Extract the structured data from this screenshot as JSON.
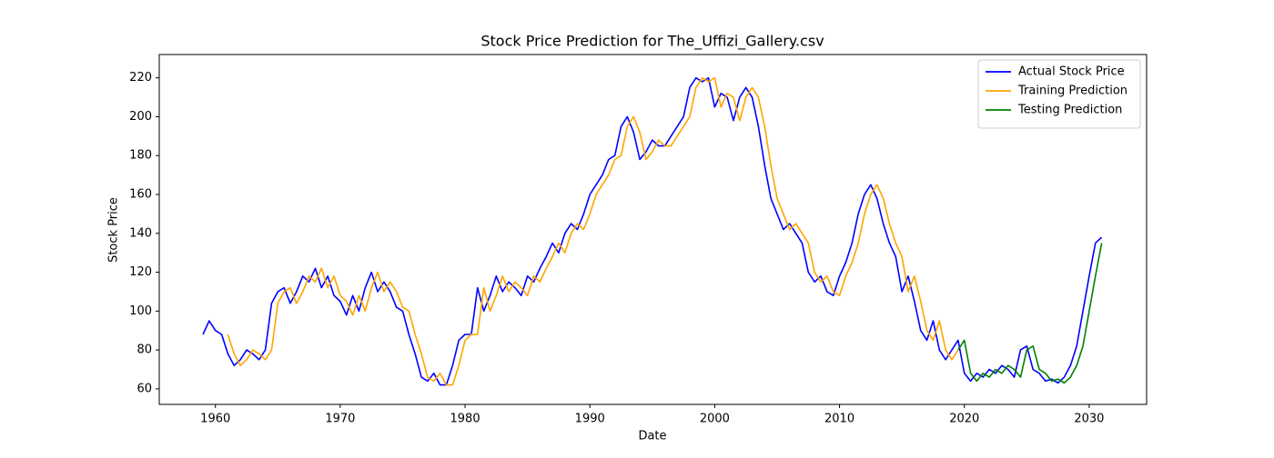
{
  "chart_data": {
    "type": "line",
    "title": "Stock Price Prediction for The_Uffizi_Gallery.csv",
    "x_label": "Date",
    "y_label": "Stock Price",
    "xlim": [
      1955.5,
      2034.6
    ],
    "ylim": [
      52,
      232
    ],
    "xticks": [
      1960,
      1970,
      1980,
      1990,
      2000,
      2010,
      2020,
      2030
    ],
    "yticks": [
      60,
      80,
      100,
      120,
      140,
      160,
      180,
      200,
      220
    ],
    "grid": false,
    "legend": "upper right",
    "x": [
      1959,
      1959.5,
      1960,
      1960.5,
      1961,
      1961.5,
      1962,
      1962.5,
      1963,
      1963.5,
      1964,
      1964.5,
      1965,
      1965.5,
      1966,
      1966.5,
      1967,
      1967.5,
      1968,
      1968.5,
      1969,
      1969.5,
      1970,
      1970.5,
      1971,
      1971.5,
      1972,
      1972.5,
      1973,
      1973.5,
      1974,
      1974.5,
      1975,
      1975.5,
      1976,
      1976.5,
      1977,
      1977.5,
      1978,
      1978.5,
      1979,
      1979.5,
      1980,
      1980.5,
      1981,
      1981.5,
      1982,
      1982.5,
      1983,
      1983.5,
      1984,
      1984.5,
      1985,
      1985.5,
      1986,
      1986.5,
      1987,
      1987.5,
      1988,
      1988.5,
      1989,
      1989.5,
      1990,
      1990.5,
      1991,
      1991.5,
      1992,
      1992.5,
      1993,
      1993.5,
      1994,
      1994.5,
      1995,
      1995.5,
      1996,
      1996.5,
      1997,
      1997.5,
      1998,
      1998.5,
      1999,
      1999.5,
      2000,
      2000.5,
      2001,
      2001.5,
      2002,
      2002.5,
      2003,
      2003.5,
      2004,
      2004.5,
      2005,
      2005.5,
      2006,
      2006.5,
      2007,
      2007.5,
      2008,
      2008.5,
      2009,
      2009.5,
      2010,
      2010.5,
      2011,
      2011.5,
      2012,
      2012.5,
      2013,
      2013.5,
      2014,
      2014.5,
      2015,
      2015.5,
      2016,
      2016.5,
      2017,
      2017.5,
      2018,
      2018.5,
      2019,
      2019.5,
      2020,
      2020.5,
      2021,
      2021.5,
      2022,
      2022.5,
      2023,
      2023.5,
      2024,
      2024.5,
      2025,
      2025.5,
      2026,
      2026.5,
      2027,
      2027.5,
      2028,
      2028.5,
      2029,
      2029.5,
      2030,
      2030.5,
      2031
    ],
    "series": [
      {
        "name": "Actual Stock Price",
        "color": "#0000ff",
        "values": [
          88,
          95,
          90,
          88,
          78,
          72,
          75,
          80,
          78,
          75,
          80,
          104,
          110,
          112,
          104,
          110,
          118,
          115,
          122,
          112,
          118,
          108,
          105,
          98,
          108,
          100,
          112,
          120,
          110,
          115,
          110,
          102,
          100,
          88,
          78,
          66,
          64,
          68,
          62,
          62,
          72,
          85,
          88,
          88,
          112,
          100,
          108,
          118,
          110,
          115,
          112,
          108,
          118,
          115,
          122,
          128,
          135,
          130,
          140,
          145,
          142,
          150,
          160,
          165,
          170,
          178,
          180,
          195,
          200,
          192,
          178,
          182,
          188,
          185,
          185,
          190,
          195,
          200,
          215,
          220,
          218,
          220,
          205,
          212,
          210,
          198,
          210,
          215,
          210,
          195,
          175,
          158,
          150,
          142,
          145,
          140,
          135,
          120,
          115,
          118,
          110,
          108,
          118,
          125,
          135,
          150,
          160,
          165,
          158,
          145,
          135,
          128,
          110,
          118,
          105,
          90,
          85,
          95,
          80,
          75,
          80,
          85,
          68,
          64,
          68,
          66,
          70,
          68,
          72,
          70,
          66,
          80,
          82,
          70,
          68,
          64,
          65,
          63,
          66,
          72,
          82,
          100,
          118,
          135,
          138
        ]
      },
      {
        "name": "Training Prediction",
        "color": "#ffa500",
        "values": [
          null,
          null,
          null,
          null,
          88,
          78,
          72,
          75,
          80,
          78,
          75,
          80,
          104,
          110,
          112,
          104,
          110,
          118,
          115,
          122,
          112,
          118,
          108,
          105,
          98,
          108,
          100,
          112,
          120,
          110,
          115,
          110,
          102,
          100,
          88,
          78,
          66,
          64,
          68,
          62,
          62,
          72,
          85,
          88,
          88,
          112,
          100,
          108,
          118,
          110,
          115,
          112,
          108,
          118,
          115,
          122,
          128,
          135,
          130,
          140,
          145,
          142,
          150,
          160,
          165,
          170,
          178,
          180,
          195,
          200,
          192,
          178,
          182,
          188,
          185,
          185,
          190,
          195,
          200,
          215,
          220,
          218,
          220,
          205,
          212,
          210,
          198,
          210,
          215,
          210,
          195,
          175,
          158,
          150,
          142,
          145,
          140,
          135,
          120,
          115,
          118,
          110,
          108,
          118,
          125,
          135,
          150,
          160,
          165,
          158,
          145,
          135,
          128,
          110,
          118,
          105,
          90,
          85,
          95,
          80,
          75,
          80,
          null,
          null,
          null,
          null,
          null,
          null,
          null,
          null,
          null,
          null,
          null,
          null,
          null,
          null,
          null,
          null,
          null,
          null,
          null,
          null,
          null,
          null,
          null
        ]
      },
      {
        "name": "Testing Prediction",
        "color": "#008000",
        "values": [
          null,
          null,
          null,
          null,
          null,
          null,
          null,
          null,
          null,
          null,
          null,
          null,
          null,
          null,
          null,
          null,
          null,
          null,
          null,
          null,
          null,
          null,
          null,
          null,
          null,
          null,
          null,
          null,
          null,
          null,
          null,
          null,
          null,
          null,
          null,
          null,
          null,
          null,
          null,
          null,
          null,
          null,
          null,
          null,
          null,
          null,
          null,
          null,
          null,
          null,
          null,
          null,
          null,
          null,
          null,
          null,
          null,
          null,
          null,
          null,
          null,
          null,
          null,
          null,
          null,
          null,
          null,
          null,
          null,
          null,
          null,
          null,
          null,
          null,
          null,
          null,
          null,
          null,
          null,
          null,
          null,
          null,
          null,
          null,
          null,
          null,
          null,
          null,
          null,
          null,
          null,
          null,
          null,
          null,
          null,
          null,
          null,
          null,
          null,
          null,
          null,
          null,
          null,
          null,
          null,
          null,
          null,
          null,
          null,
          null,
          null,
          null,
          null,
          null,
          null,
          null,
          null,
          null,
          null,
          null,
          null,
          80,
          85,
          68,
          64,
          68,
          66,
          70,
          68,
          72,
          70,
          66,
          80,
          82,
          70,
          68,
          64,
          65,
          63,
          66,
          72,
          82,
          100,
          118,
          135
        ]
      }
    ]
  }
}
